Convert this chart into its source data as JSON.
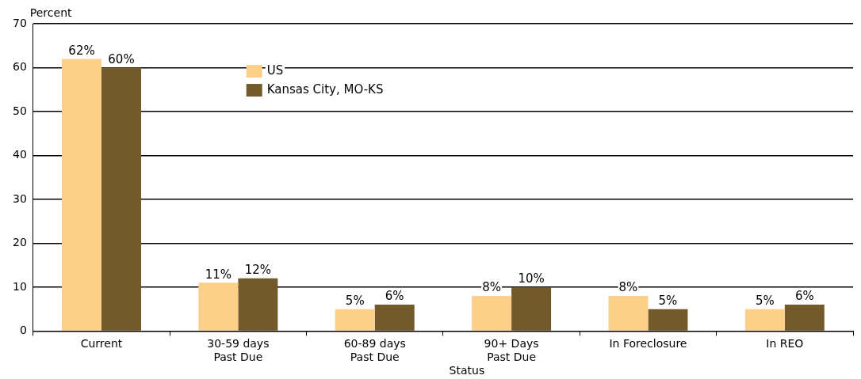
{
  "chart_data": {
    "type": "bar",
    "xlabel": "Status",
    "ylabel": "Percent",
    "categories": [
      "Current",
      "30-59 days\nPast Due",
      "60-89 days\nPast Due",
      "90+ Days\nPast Due",
      "In Foreclosure",
      "In REO"
    ],
    "series": [
      {
        "name": "US",
        "color": "#fdd08a",
        "values": [
          62,
          11,
          5,
          8,
          8,
          5
        ],
        "value_labels": [
          "62%",
          "11%",
          "5%",
          "8%",
          "8%",
          "5%"
        ]
      },
      {
        "name": "Kansas City, MO-KS",
        "color": "#735a2a",
        "values": [
          60,
          12,
          6,
          10,
          5,
          6
        ],
        "value_labels": [
          "60%",
          "12%",
          "6%",
          "10%",
          "5%",
          "6%"
        ]
      }
    ],
    "ylim": [
      0,
      70
    ],
    "yticks": [
      0,
      10,
      20,
      30,
      40,
      50,
      60,
      70
    ],
    "grid": "y",
    "legend": "top left"
  }
}
